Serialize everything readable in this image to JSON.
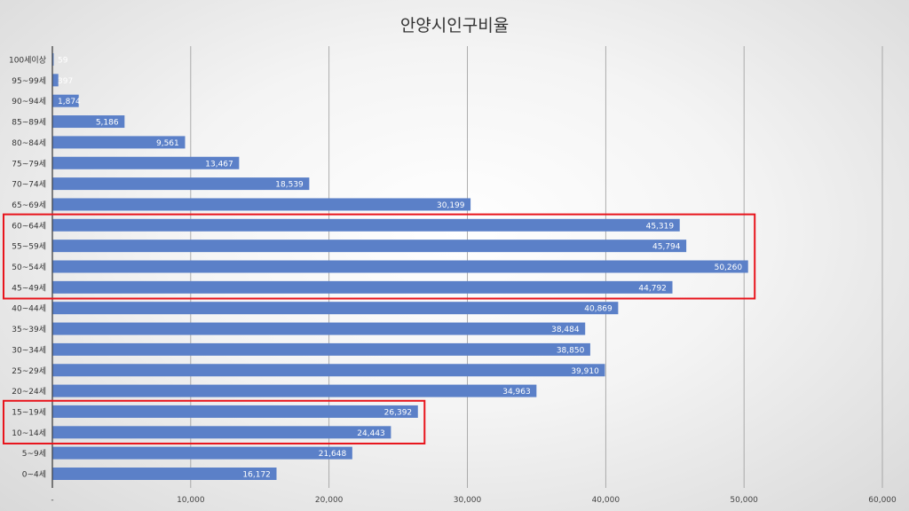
{
  "chart_data": {
    "type": "bar",
    "orientation": "horizontal",
    "title": "안양시인구비율",
    "xlabel": "",
    "ylabel": "",
    "xlim": [
      0,
      60000
    ],
    "x_ticks": [
      0,
      10000,
      20000,
      30000,
      40000,
      50000,
      60000
    ],
    "x_tick_labels": [
      "-",
      "10,000",
      "20,000",
      "30,000",
      "40,000",
      "50,000",
      "60,000"
    ],
    "grid": true,
    "categories": [
      "100세이상",
      "95~99세",
      "90~94세",
      "85~89세",
      "80~84세",
      "75~79세",
      "70~74세",
      "65~69세",
      "60~64세",
      "55~59세",
      "50~54세",
      "45~49세",
      "40~44세",
      "35~39세",
      "30~34세",
      "25~29세",
      "20~24세",
      "15~19세",
      "10~14세",
      "5~9세",
      "0~4세"
    ],
    "values": [
      59,
      397,
      1874,
      5186,
      9561,
      13467,
      18539,
      30199,
      45319,
      45794,
      50260,
      44792,
      40869,
      38484,
      38850,
      39910,
      34963,
      26392,
      24443,
      21648,
      16172
    ],
    "value_labels": [
      "59",
      "397",
      "1,874",
      "5,186",
      "9,561",
      "13,467",
      "18,539",
      "30,199",
      "45,319",
      "45,794",
      "50,260",
      "44,792",
      "40,869",
      "38,484",
      "38,850",
      "39,910",
      "34,963",
      "26,392",
      "24,443",
      "21,648",
      "16,172"
    ],
    "bar_color": "#5b80c8",
    "highlight_color": "#e8141c",
    "highlight_groups": [
      [
        "60~64세",
        "55~59세",
        "50~54세",
        "45~49세"
      ],
      [
        "15~19세",
        "10~14세"
      ]
    ]
  }
}
